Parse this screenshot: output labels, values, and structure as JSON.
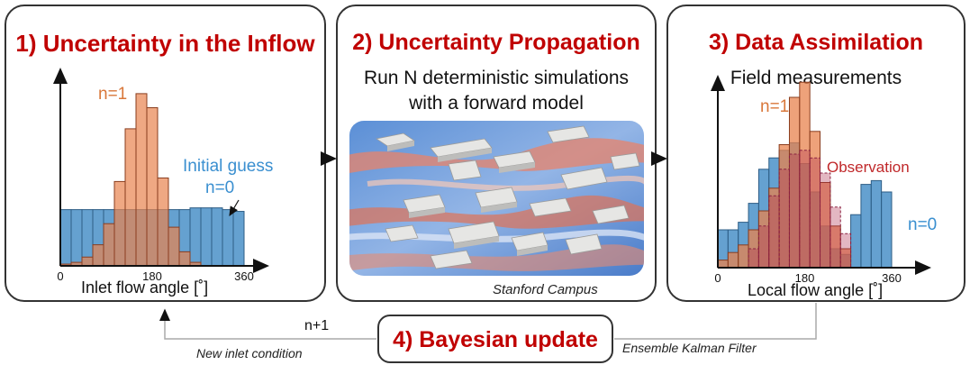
{
  "panels": {
    "inflow": {
      "title": "1) Uncertainty in the Inflow",
      "xlabel": "Inlet flow angle [˚]",
      "label_n1": "n=1",
      "label_guess": "Initial guess",
      "label_n0": "n=0"
    },
    "propagation": {
      "title": "2) Uncertainty Propagation",
      "line1": "Run N deterministic simulations",
      "line2": "with a forward model",
      "caption": "Stanford Campus"
    },
    "assimilation": {
      "title": "3) Data Assimilation",
      "subtitle": "Field measurements",
      "xlabel": "Local flow angle [˚]",
      "label_n1": "n=1",
      "label_obs": "Observation",
      "label_n0": "n=0"
    },
    "bayesian": {
      "title": "4) Bayesian update",
      "left_label": "New inlet condition",
      "right_label": "Ensemble Kalman Filter",
      "loop_label": "n+1"
    }
  },
  "colors": {
    "title": "#c00000",
    "prior": "#4a90c8",
    "posterior": "#e8834e",
    "observation": "#b03050",
    "blue_text": "#3a8fd0",
    "orange_text": "#d9773a",
    "red_text": "#c0282a"
  },
  "chart_data": [
    {
      "type": "bar",
      "xticks": [
        "0",
        "180",
        "360"
      ],
      "xlim": [
        0,
        360
      ],
      "series": [
        {
          "name": "n=0",
          "values": [
            0.32,
            0.32,
            0.32,
            0.32,
            0.32,
            0.32,
            0.32,
            0.32,
            0.32,
            0.32,
            0.32,
            0.32,
            0.33,
            0.33,
            0.33,
            0.32,
            0.31
          ]
        },
        {
          "name": "n=1",
          "values": [
            0.01,
            0.02,
            0.05,
            0.12,
            0.24,
            0.48,
            0.78,
            0.98,
            0.9,
            0.5,
            0.22,
            0.08,
            0.02,
            0.0,
            0.0,
            0.0,
            0.0
          ]
        }
      ]
    },
    {
      "type": "bar",
      "xticks": [
        "0",
        "180",
        "360"
      ],
      "xlim": [
        0,
        360
      ],
      "series": [
        {
          "name": "n=0",
          "values": [
            0.2,
            0.2,
            0.24,
            0.34,
            0.52,
            0.58,
            0.62,
            0.66,
            0.55,
            0.4,
            0.22,
            0.1,
            0.07,
            0.28,
            0.44,
            0.46,
            0.4
          ]
        },
        {
          "name": "n=1",
          "values": [
            0.04,
            0.08,
            0.12,
            0.2,
            0.3,
            0.42,
            0.65,
            0.9,
            0.98,
            0.72,
            0.45,
            0.22,
            0.1,
            0.0,
            0.0,
            0.0,
            0.0
          ]
        },
        {
          "name": "Observation",
          "values": [
            0.0,
            0.0,
            0.0,
            0.1,
            0.22,
            0.38,
            0.52,
            0.6,
            0.62,
            0.58,
            0.5,
            0.32,
            0.18,
            0.0,
            0.0,
            0.0,
            0.0
          ]
        }
      ]
    }
  ]
}
